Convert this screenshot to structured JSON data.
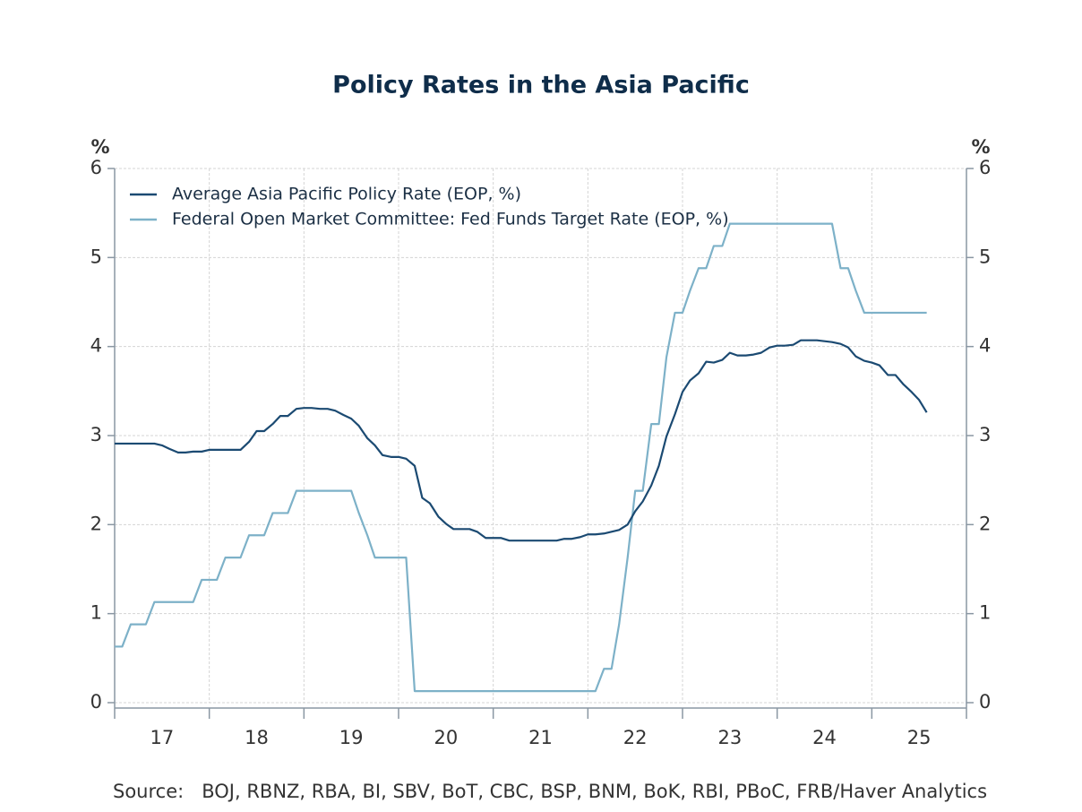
{
  "chart_data": {
    "type": "line",
    "title": "Policy Rates in the Asia Pacific",
    "y_label": "%",
    "y2_label": "%",
    "source": "Source:   BOJ, RBNZ, RBA, BI, SBV, BoT, CBC, BSP, BNM, BoK, RBI, PBoC, FRB/Haver Analytics",
    "xlim": [
      17,
      26
    ],
    "xticks": [
      17,
      18,
      19,
      20,
      21,
      22,
      23,
      24,
      25
    ],
    "ylim": [
      0,
      6
    ],
    "yticks": [
      0,
      1,
      2,
      3,
      4,
      5,
      6
    ],
    "y2lim": [
      0,
      6
    ],
    "y2ticks": [
      0,
      1,
      2,
      3,
      4,
      5,
      6
    ],
    "grid": true,
    "legend": "upper left",
    "x": [
      17.0,
      17.08,
      17.17,
      17.25,
      17.33,
      17.42,
      17.5,
      17.58,
      17.67,
      17.75,
      17.83,
      17.92,
      18.0,
      18.08,
      18.17,
      18.25,
      18.33,
      18.42,
      18.5,
      18.58,
      18.67,
      18.75,
      18.83,
      18.92,
      19.0,
      19.08,
      19.17,
      19.25,
      19.33,
      19.42,
      19.5,
      19.58,
      19.67,
      19.75,
      19.83,
      19.92,
      20.0,
      20.08,
      20.17,
      20.25,
      20.33,
      20.42,
      20.5,
      20.58,
      20.67,
      20.75,
      20.83,
      20.92,
      21.0,
      21.08,
      21.17,
      21.25,
      21.33,
      21.42,
      21.5,
      21.58,
      21.67,
      21.75,
      21.83,
      21.92,
      22.0,
      22.08,
      22.17,
      22.25,
      22.33,
      22.42,
      22.5,
      22.58,
      22.67,
      22.75,
      22.83,
      22.92,
      23.0,
      23.08,
      23.17,
      23.25,
      23.33,
      23.42,
      23.5,
      23.58,
      23.67,
      23.75,
      23.83,
      23.92,
      24.0,
      24.08,
      24.17,
      24.25,
      24.33,
      24.42,
      24.5,
      24.58,
      24.67,
      24.75,
      24.83,
      24.92,
      25.0,
      25.08,
      25.17,
      25.25,
      25.33,
      25.42,
      25.5,
      25.58
    ],
    "series": [
      {
        "name": "Average Asia Pacific Policy Rate (EOP, %)",
        "color": "#1b4a72",
        "values": [
          2.91,
          2.91,
          2.91,
          2.91,
          2.91,
          2.91,
          2.89,
          2.85,
          2.81,
          2.81,
          2.82,
          2.82,
          2.84,
          2.84,
          2.84,
          2.84,
          2.84,
          2.93,
          3.05,
          3.05,
          3.13,
          3.22,
          3.22,
          3.3,
          3.31,
          3.31,
          3.3,
          3.3,
          3.28,
          3.23,
          3.19,
          3.11,
          2.97,
          2.89,
          2.78,
          2.76,
          2.76,
          2.74,
          2.66,
          2.3,
          2.24,
          2.09,
          2.01,
          1.95,
          1.95,
          1.95,
          1.92,
          1.85,
          1.85,
          1.85,
          1.82,
          1.82,
          1.82,
          1.82,
          1.82,
          1.82,
          1.82,
          1.84,
          1.84,
          1.86,
          1.89,
          1.89,
          1.9,
          1.92,
          1.94,
          2.0,
          2.15,
          2.26,
          2.44,
          2.66,
          2.99,
          3.24,
          3.49,
          3.62,
          3.7,
          3.83,
          3.82,
          3.85,
          3.93,
          3.9,
          3.9,
          3.91,
          3.93,
          3.99,
          4.01,
          4.01,
          4.02,
          4.07,
          4.07,
          4.07,
          4.06,
          4.05,
          4.03,
          3.99,
          3.89,
          3.84,
          3.82,
          3.79,
          3.68,
          3.68,
          3.58,
          3.49,
          3.4,
          3.26
        ]
      },
      {
        "name": "Federal Open Market Committee: Fed Funds Target Rate (EOP, %)",
        "color": "#7db1c8",
        "values": [
          0.63,
          0.63,
          0.88,
          0.88,
          0.88,
          1.13,
          1.13,
          1.13,
          1.13,
          1.13,
          1.13,
          1.38,
          1.38,
          1.38,
          1.63,
          1.63,
          1.63,
          1.88,
          1.88,
          1.88,
          2.13,
          2.13,
          2.13,
          2.38,
          2.38,
          2.38,
          2.38,
          2.38,
          2.38,
          2.38,
          2.38,
          2.13,
          1.88,
          1.63,
          1.63,
          1.63,
          1.63,
          1.63,
          0.13,
          0.13,
          0.13,
          0.13,
          0.13,
          0.13,
          0.13,
          0.13,
          0.13,
          0.13,
          0.13,
          0.13,
          0.13,
          0.13,
          0.13,
          0.13,
          0.13,
          0.13,
          0.13,
          0.13,
          0.13,
          0.13,
          0.13,
          0.13,
          0.38,
          0.38,
          0.88,
          1.63,
          2.38,
          2.38,
          3.13,
          3.13,
          3.88,
          4.38,
          4.38,
          4.63,
          4.88,
          4.88,
          5.13,
          5.13,
          5.38,
          5.38,
          5.38,
          5.38,
          5.38,
          5.38,
          5.38,
          5.38,
          5.38,
          5.38,
          5.38,
          5.38,
          5.38,
          5.38,
          4.88,
          4.88,
          4.63,
          4.38,
          4.38,
          4.38,
          4.38,
          4.38,
          4.38,
          4.38,
          4.38,
          4.38
        ]
      }
    ]
  }
}
